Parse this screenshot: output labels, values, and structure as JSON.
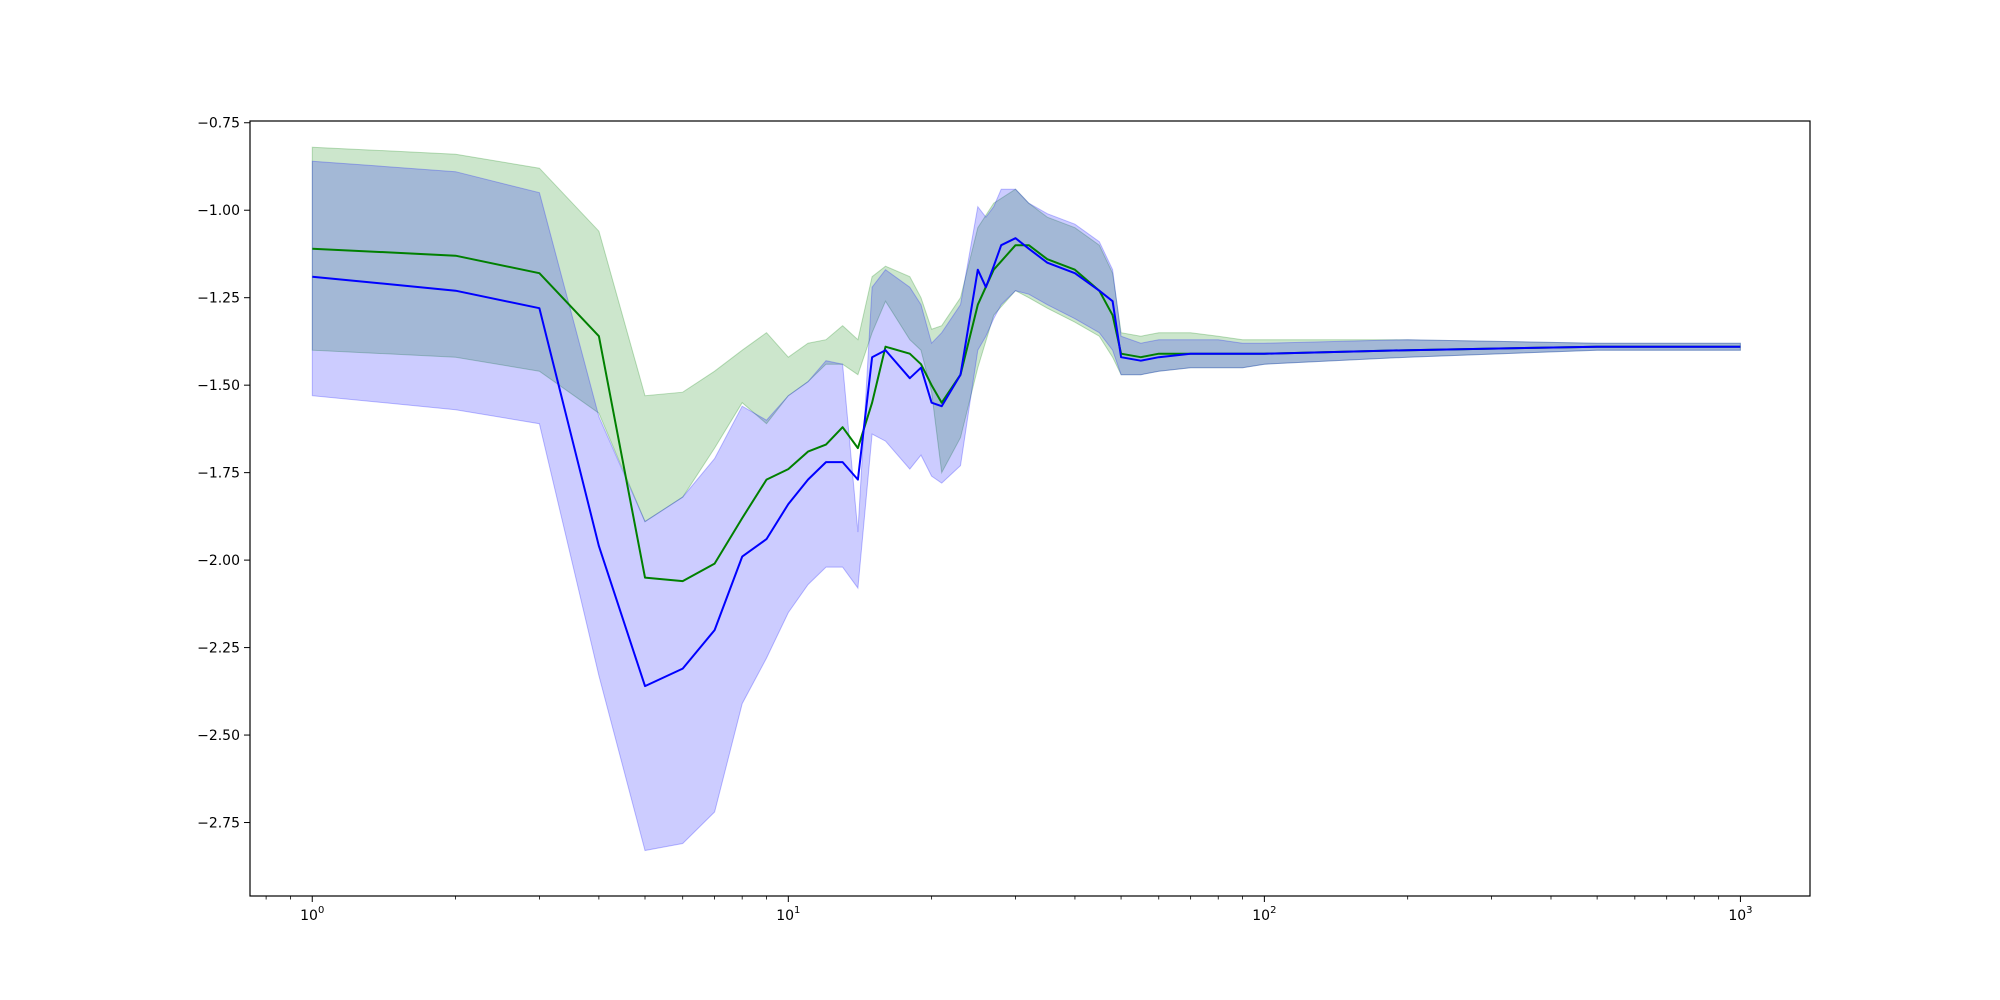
{
  "chart_data": {
    "type": "line",
    "title": "",
    "xlabel": "",
    "ylabel": "",
    "xscale": "log",
    "xlim": [
      0.74,
      1400
    ],
    "ylim": [
      -2.96,
      -0.745
    ],
    "grid": false,
    "legend": "none",
    "x_ticks": [
      {
        "value": 1,
        "base": "10",
        "exp": "0"
      },
      {
        "value": 10,
        "base": "10",
        "exp": "1"
      },
      {
        "value": 100,
        "base": "10",
        "exp": "2"
      },
      {
        "value": 1000,
        "base": "10",
        "exp": "3"
      }
    ],
    "y_ticks": [
      {
        "value": -0.75,
        "label": "−0.75"
      },
      {
        "value": -1.0,
        "label": "−1.00"
      },
      {
        "value": -1.25,
        "label": "−1.25"
      },
      {
        "value": -1.5,
        "label": "−1.50"
      },
      {
        "value": -1.75,
        "label": "−1.75"
      },
      {
        "value": -2.0,
        "label": "−2.00"
      },
      {
        "value": -2.25,
        "label": "−2.25"
      },
      {
        "value": -2.5,
        "label": "−2.50"
      },
      {
        "value": -2.75,
        "label": "−2.75"
      }
    ],
    "series": [
      {
        "color": "#008000",
        "band_color": "#008000",
        "band_opacity": 0.2,
        "x": [
          1,
          2,
          3,
          4,
          5,
          6,
          7,
          8,
          9,
          10,
          11,
          12,
          13,
          14,
          15,
          16,
          18,
          19,
          20,
          21,
          23,
          25,
          27,
          30,
          32,
          35,
          40,
          45,
          48,
          50,
          55,
          60,
          70,
          80,
          90,
          100,
          200,
          500,
          1000
        ],
        "y": [
          -1.11,
          -1.13,
          -1.18,
          -1.36,
          -2.05,
          -2.06,
          -2.01,
          -1.88,
          -1.77,
          -1.74,
          -1.69,
          -1.67,
          -1.62,
          -1.68,
          -1.55,
          -1.39,
          -1.41,
          -1.44,
          -1.5,
          -1.55,
          -1.47,
          -1.27,
          -1.17,
          -1.1,
          -1.1,
          -1.14,
          -1.17,
          -1.23,
          -1.3,
          -1.41,
          -1.42,
          -1.41,
          -1.41,
          -1.41,
          -1.41,
          -1.41,
          -1.4,
          -1.39,
          -1.39
        ],
        "lower": [
          -1.4,
          -1.42,
          -1.46,
          -1.58,
          -1.89,
          -1.82,
          -1.68,
          -1.55,
          -1.61,
          -1.53,
          -1.49,
          -1.44,
          -1.44,
          -1.47,
          -1.35,
          -1.26,
          -1.37,
          -1.4,
          -1.52,
          -1.75,
          -1.65,
          -1.45,
          -1.3,
          -1.23,
          -1.25,
          -1.28,
          -1.32,
          -1.36,
          -1.42,
          -1.47,
          -1.47,
          -1.46,
          -1.45,
          -1.45,
          -1.45,
          -1.44,
          -1.42,
          -1.4,
          -1.4
        ],
        "upper": [
          -0.82,
          -0.84,
          -0.88,
          -1.06,
          -1.53,
          -1.52,
          -1.46,
          -1.4,
          -1.35,
          -1.42,
          -1.38,
          -1.37,
          -1.33,
          -1.37,
          -1.19,
          -1.16,
          -1.19,
          -1.25,
          -1.34,
          -1.33,
          -1.25,
          -1.05,
          -0.98,
          -0.94,
          -0.98,
          -1.02,
          -1.05,
          -1.1,
          -1.18,
          -1.35,
          -1.36,
          -1.35,
          -1.35,
          -1.36,
          -1.37,
          -1.37,
          -1.37,
          -1.38,
          -1.38
        ]
      },
      {
        "color": "#0000ff",
        "band_color": "#0000ff",
        "band_opacity": 0.2,
        "x": [
          1,
          2,
          3,
          4,
          5,
          6,
          7,
          8,
          9,
          10,
          11,
          12,
          13,
          14,
          15,
          16,
          18,
          19,
          20,
          21,
          23,
          25,
          26,
          27,
          28,
          30,
          32,
          35,
          40,
          45,
          48,
          50,
          55,
          60,
          70,
          80,
          90,
          100,
          200,
          500,
          1000
        ],
        "y": [
          -1.19,
          -1.23,
          -1.28,
          -1.96,
          -2.36,
          -2.31,
          -2.2,
          -1.99,
          -1.94,
          -1.84,
          -1.77,
          -1.72,
          -1.72,
          -1.77,
          -1.42,
          -1.4,
          -1.48,
          -1.45,
          -1.55,
          -1.56,
          -1.47,
          -1.17,
          -1.22,
          -1.16,
          -1.1,
          -1.08,
          -1.11,
          -1.15,
          -1.18,
          -1.23,
          -1.26,
          -1.42,
          -1.43,
          -1.42,
          -1.41,
          -1.41,
          -1.41,
          -1.41,
          -1.4,
          -1.39,
          -1.39
        ],
        "lower": [
          -1.53,
          -1.57,
          -1.61,
          -2.33,
          -2.83,
          -2.81,
          -2.72,
          -2.41,
          -2.28,
          -2.15,
          -2.07,
          -2.02,
          -2.02,
          -2.08,
          -1.64,
          -1.66,
          -1.74,
          -1.7,
          -1.76,
          -1.78,
          -1.73,
          -1.4,
          -1.36,
          -1.31,
          -1.27,
          -1.23,
          -1.24,
          -1.27,
          -1.31,
          -1.35,
          -1.4,
          -1.47,
          -1.47,
          -1.46,
          -1.45,
          -1.45,
          -1.45,
          -1.44,
          -1.42,
          -1.4,
          -1.4
        ],
        "upper": [
          -0.86,
          -0.89,
          -0.95,
          -1.59,
          -1.89,
          -1.82,
          -1.71,
          -1.56,
          -1.6,
          -1.53,
          -1.49,
          -1.43,
          -1.44,
          -1.92,
          -1.22,
          -1.17,
          -1.22,
          -1.27,
          -1.38,
          -1.35,
          -1.27,
          -0.99,
          -1.02,
          -0.99,
          -0.94,
          -0.94,
          -0.98,
          -1.01,
          -1.04,
          -1.09,
          -1.17,
          -1.36,
          -1.38,
          -1.37,
          -1.37,
          -1.37,
          -1.38,
          -1.38,
          -1.37,
          -1.38,
          -1.38
        ]
      }
    ]
  }
}
